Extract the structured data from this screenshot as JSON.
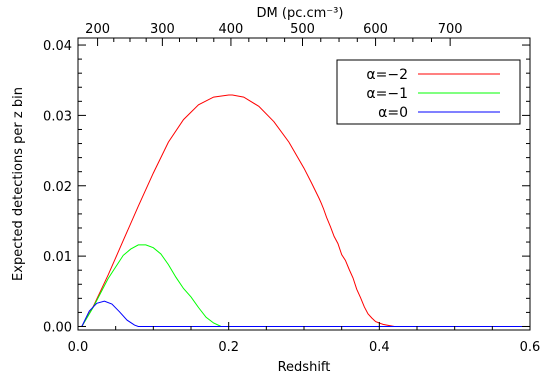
{
  "chart_data": {
    "type": "line",
    "xlabel": "Redshift",
    "ylabel": "Expected detections per z bin",
    "top_axis_label": "DM (pc.cm⁻³)",
    "xlim": [
      0.0,
      0.6
    ],
    "ylim": [
      -0.0005,
      0.041
    ],
    "x_ticks": [
      0.0,
      0.2,
      0.4,
      0.6
    ],
    "x_tick_labels": [
      "0.0",
      "0.2",
      "0.4",
      "0.6"
    ],
    "y_ticks": [
      0.0,
      0.01,
      0.02,
      0.03,
      0.04
    ],
    "y_tick_labels": [
      "0.00",
      "0.01",
      "0.02",
      "0.03",
      "0.04"
    ],
    "top_ticks_z": [
      0.026,
      0.112,
      0.203,
      0.298,
      0.395,
      0.494
    ],
    "top_tick_labels": [
      "200",
      "300",
      "400",
      "500",
      "600",
      "700"
    ],
    "grid": false,
    "legend_position": "top-right",
    "series": [
      {
        "name": "α=−2",
        "color": "#ff0000",
        "x": [
          0.005,
          0.02,
          0.04,
          0.06,
          0.08,
          0.1,
          0.12,
          0.14,
          0.16,
          0.18,
          0.2,
          0.205,
          0.22,
          0.24,
          0.26,
          0.28,
          0.3,
          0.31,
          0.32,
          0.323,
          0.326,
          0.33,
          0.335,
          0.34,
          0.345,
          0.35,
          0.355,
          0.36,
          0.365,
          0.37,
          0.375,
          0.38,
          0.385,
          0.39,
          0.395,
          0.4,
          0.405,
          0.41,
          0.42,
          0.6
        ],
        "values": [
          0.0,
          0.0028,
          0.0073,
          0.0122,
          0.0171,
          0.0218,
          0.0262,
          0.0294,
          0.0315,
          0.0326,
          0.0329,
          0.0329,
          0.0326,
          0.0313,
          0.0291,
          0.0262,
          0.0225,
          0.0204,
          0.0182,
          0.0175,
          0.0167,
          0.0155,
          0.0142,
          0.0128,
          0.0118,
          0.0102,
          0.0094,
          0.0081,
          0.0069,
          0.0053,
          0.0041,
          0.0028,
          0.0018,
          0.0012,
          0.0007,
          0.0005,
          0.0003,
          0.0002,
          0.0,
          0.0
        ]
      },
      {
        "name": "α=−1",
        "color": "#00ff00",
        "x": [
          0.005,
          0.02,
          0.04,
          0.06,
          0.07,
          0.08,
          0.09,
          0.1,
          0.11,
          0.12,
          0.13,
          0.14,
          0.15,
          0.16,
          0.17,
          0.18,
          0.19,
          0.6
        ],
        "values": [
          0.0,
          0.0027,
          0.0068,
          0.0101,
          0.011,
          0.0116,
          0.0116,
          0.0112,
          0.0103,
          0.0088,
          0.007,
          0.0054,
          0.0042,
          0.0027,
          0.0013,
          0.0005,
          0.0,
          0.0
        ]
      },
      {
        "name": "α=0",
        "color": "#0000ff",
        "x": [
          0.005,
          0.015,
          0.025,
          0.035,
          0.045,
          0.055,
          0.065,
          0.075,
          0.08,
          0.6
        ],
        "values": [
          0.0,
          0.0022,
          0.0033,
          0.0036,
          0.0032,
          0.0021,
          0.0009,
          0.0002,
          0.0,
          0.0
        ]
      }
    ]
  }
}
